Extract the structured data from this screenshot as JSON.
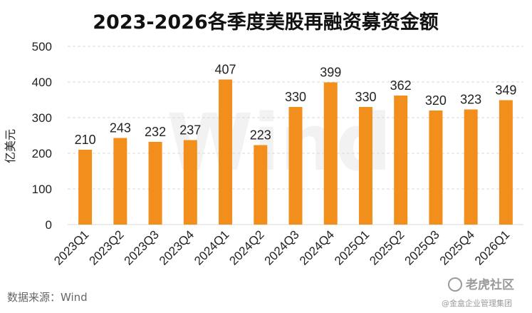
{
  "chart_data": {
    "type": "bar",
    "title": "2023-2026各季度美股再融资募资金额",
    "ylabel": "亿美元",
    "xlabel": "",
    "ylim": [
      0,
      500
    ],
    "yticks": [
      0,
      100,
      200,
      300,
      400,
      500
    ],
    "grid": true,
    "categories": [
      "2023Q1",
      "2023Q2",
      "2023Q3",
      "2023Q4",
      "2024Q1",
      "2024Q2",
      "2024Q3",
      "2024Q4",
      "2025Q1",
      "2025Q2",
      "2025Q3",
      "2025Q4",
      "2026Q1"
    ],
    "values": [
      210,
      243,
      232,
      237,
      407,
      223,
      330,
      399,
      330,
      362,
      320,
      323,
      349
    ],
    "bar_color": "#f28e1c"
  },
  "source": "数据来源：Wind",
  "watermark": {
    "background": "Wind",
    "brand": "老虎社区",
    "author": "@金盒企业管理集团"
  }
}
